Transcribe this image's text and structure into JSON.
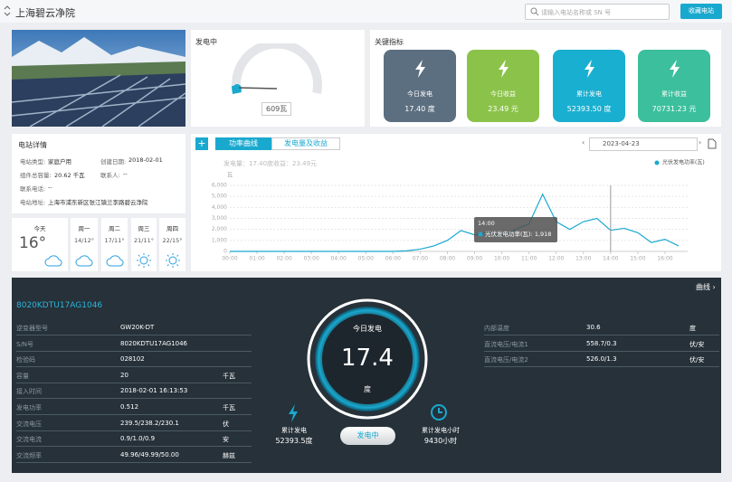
{
  "header": {
    "title": "上海碧云净院",
    "search_placeholder": "请输入电站名称或 SN 号",
    "favorite_button": "收藏电站"
  },
  "status_card": {
    "title": "发电中",
    "power": "609瓦"
  },
  "key_metrics": {
    "title": "关键指标",
    "items": [
      {
        "label": "今日发电",
        "value": "17.40 度",
        "color": "#5c6f80"
      },
      {
        "label": "今日收益",
        "value": "23.49 元",
        "color": "#8bc34a"
      },
      {
        "label": "累计发电",
        "value": "52393.50 度",
        "color": "#19afd0"
      },
      {
        "label": "累计收益",
        "value": "70731.23 元",
        "color": "#3cbf9c"
      }
    ]
  },
  "station_details": {
    "title": "电站详情",
    "fields": [
      {
        "label": "电站类型:",
        "value": "家庭户用"
      },
      {
        "label": "创建日期:",
        "value": "2018-02-01"
      },
      {
        "label": "组件总容量:",
        "value": "20.62 千瓦"
      },
      {
        "label": "联系人:",
        "value": "--"
      },
      {
        "label": "联系电话:",
        "value": "--"
      },
      {
        "label": "电站地址:",
        "value": "上海市浦东新区张江镇兰李路碧云净院"
      }
    ]
  },
  "weather": [
    {
      "day": "今天",
      "temp": "16°"
    },
    {
      "day": "周一",
      "temp": "14/12°"
    },
    {
      "day": "周二",
      "temp": "17/11°"
    },
    {
      "day": "周三",
      "temp": "21/11°"
    },
    {
      "day": "周四",
      "temp": "22/15°"
    }
  ],
  "chart_panel": {
    "tabs": [
      "功率曲线",
      "发电量及收益"
    ],
    "date": "2023-04-23",
    "summary": [
      "发电量：17.40度",
      "收益：23.49元"
    ]
  },
  "chart_data": {
    "type": "line",
    "y_label": "瓦",
    "x": [
      "00:00",
      "00:30",
      "01:00",
      "01:30",
      "02:00",
      "02:30",
      "03:00",
      "03:30",
      "04:00",
      "04:30",
      "05:00",
      "05:30",
      "06:00",
      "06:30",
      "07:00",
      "07:30",
      "08:00",
      "08:30",
      "09:00",
      "09:30",
      "10:00",
      "10:30",
      "11:00",
      "11:30",
      "12:00",
      "12:30",
      "13:00",
      "13:30",
      "14:00",
      "14:30",
      "15:00",
      "15:30",
      "16:00",
      "16:30"
    ],
    "series": [
      {
        "name": "光伏发电功率(瓦)",
        "color": "#19a9cf",
        "values": [
          0,
          0,
          0,
          0,
          0,
          0,
          0,
          0,
          0,
          0,
          0,
          0,
          0,
          50,
          200,
          500,
          1000,
          1900,
          1500,
          1700,
          1400,
          2000,
          2500,
          5200,
          2700,
          2000,
          2700,
          3000,
          1918,
          2100,
          1700,
          800,
          1100,
          500
        ]
      }
    ],
    "xlim": [
      "00:00",
      "16:50"
    ],
    "xticks": [
      "00:00",
      "01:00",
      "02:00",
      "03:00",
      "04:00",
      "05:00",
      "06:00",
      "07:00",
      "08:00",
      "09:00",
      "10:00",
      "11:00",
      "12:00",
      "13:00",
      "14:00",
      "15:00",
      "16:00"
    ],
    "ylim": [
      0,
      6000
    ],
    "yticks": [
      0,
      {
        "value": 1000,
        "label": "1,000"
      },
      {
        "value": 2000,
        "label": "2,000"
      },
      {
        "value": 3000,
        "label": "3,000"
      },
      {
        "value": 4000,
        "label": "4,000"
      },
      {
        "value": 5000,
        "label": "5,000"
      },
      {
        "value": 6000,
        "label": "6,000"
      }
    ],
    "grid": true,
    "tooltip": {
      "x": "14:00",
      "text": "光伏发电功率(瓦): 1,918"
    }
  },
  "inverter": {
    "link": "曲线",
    "sn": "8020KDTU17AG1046",
    "rows": [
      [
        "逆变器型号",
        "GW20K-DT"
      ],
      [
        "S/N号",
        "8020KDTU17AG1046"
      ],
      [
        "检验码",
        "028102"
      ],
      [
        "容量",
        "20",
        "千瓦"
      ],
      [
        "接入时间",
        "2018-02-01 16:13:53"
      ],
      [
        "发电功率",
        "0.512",
        "千瓦"
      ],
      [
        "交流电压",
        "239.5/238.2/230.1",
        "伏"
      ],
      [
        "交流电流",
        "0.9/1.0/0.9",
        "安"
      ],
      [
        "交流频率",
        "49.96/49.99/50.00",
        "赫兹"
      ]
    ],
    "right_rows": [
      [
        "内部温度",
        "30.6",
        "度"
      ],
      [
        "直流电压/电流1",
        "558.7/0.3",
        "伏/安"
      ],
      [
        "直流电压/电流2",
        "526.0/1.3",
        "伏/安"
      ]
    ],
    "today": {
      "label": "今日发电",
      "value": "17.4",
      "unit": "度"
    },
    "total": {
      "label": "累计发电",
      "value": "52393.5度"
    },
    "status": "发电中",
    "hours": {
      "label": "累计发电小时",
      "value": "9430小时"
    }
  }
}
